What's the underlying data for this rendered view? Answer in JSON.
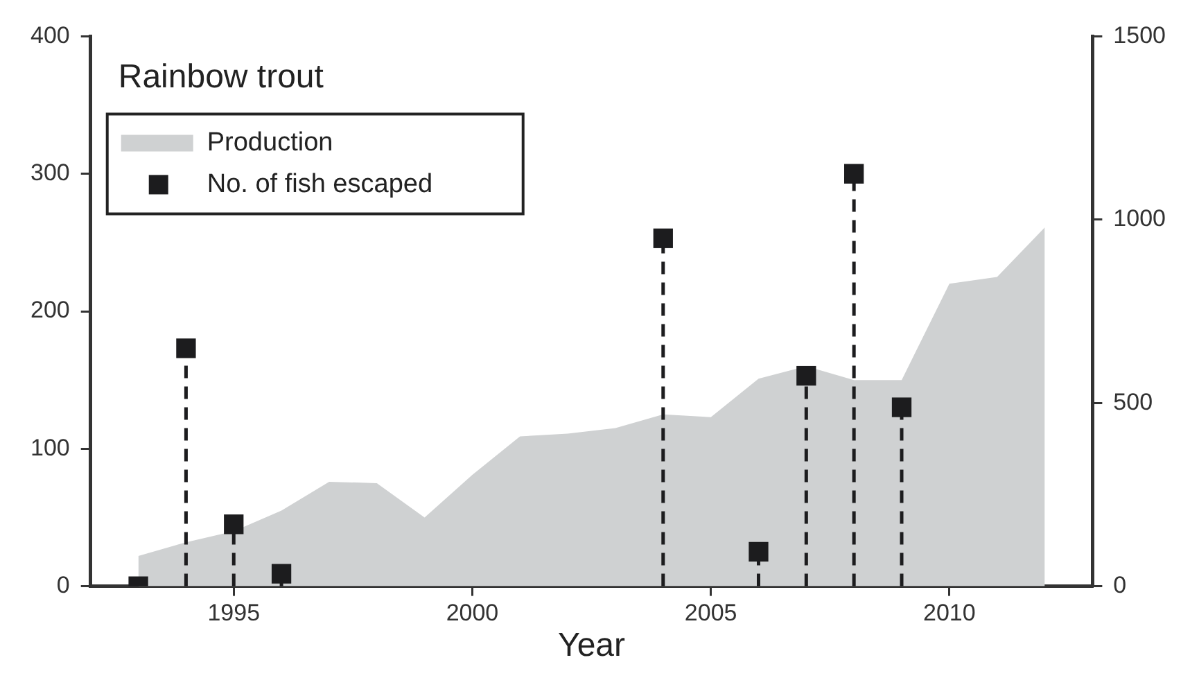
{
  "chart_data": {
    "type": "area",
    "title": "Rainbow trout",
    "xlabel": "Year",
    "xlim": [
      1992,
      2013
    ],
    "xticks": [
      1995,
      2000,
      2005,
      2010
    ],
    "ylim": [
      0,
      400
    ],
    "yticks": [
      0,
      100,
      200,
      300,
      400
    ],
    "y2lim": [
      0,
      1500
    ],
    "y2ticks": [
      0,
      500,
      1000,
      1500
    ],
    "legend": "top left",
    "series": [
      {
        "name": "Production",
        "type": "area",
        "color": "#cfd1d2",
        "x": [
          1993,
          1994,
          1995,
          1996,
          1997,
          1998,
          1999,
          2000,
          2001,
          2002,
          2003,
          2004,
          2005,
          2006,
          2007,
          2008,
          2009,
          2010,
          2011,
          2012
        ],
        "values": [
          22,
          32,
          40,
          55,
          76,
          75,
          50,
          81,
          109,
          111,
          115,
          125,
          123,
          151,
          160,
          150,
          150,
          220,
          225,
          261
        ]
      },
      {
        "name": "No. of fish escaped",
        "type": "lollipop",
        "axis": "y2",
        "color": "#1c1c1e",
        "marker": "square",
        "line_style": "dashed",
        "x": [
          1993,
          1994,
          1995,
          1996,
          2004,
          2006,
          2007,
          2008,
          2009
        ],
        "values": [
          0,
          649,
          169,
          34,
          949,
          94,
          574,
          1125,
          488
        ]
      }
    ]
  }
}
